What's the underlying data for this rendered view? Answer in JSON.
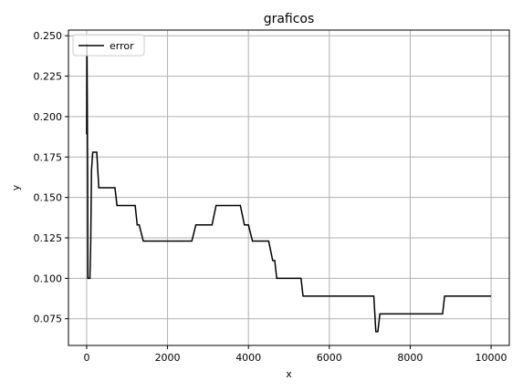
{
  "chart_data": {
    "type": "line",
    "title": "graficos",
    "xlabel": "x",
    "ylabel": "y",
    "xlim": [
      -450,
      10450
    ],
    "ylim": [
      0.0585,
      0.2535
    ],
    "xticks": [
      0,
      2000,
      4000,
      6000,
      8000,
      10000
    ],
    "xtick_labels": [
      "0",
      "2000",
      "4000",
      "6000",
      "8000",
      "10000"
    ],
    "yticks": [
      0.075,
      0.1,
      0.125,
      0.15,
      0.175,
      0.2,
      0.225,
      0.25
    ],
    "ytick_labels": [
      "0.075",
      "0.100",
      "0.125",
      "0.150",
      "0.175",
      "0.200",
      "0.225",
      "0.250"
    ],
    "grid": true,
    "legend_position": "top-left",
    "colors": {
      "line": "#000000",
      "grid": "#b0b0b0",
      "axes": "#000000",
      "background": "#ffffff"
    },
    "series": [
      {
        "name": "error",
        "x": [
          0,
          5,
          10,
          15,
          20,
          25,
          30,
          40,
          60,
          80,
          100,
          120,
          150,
          200,
          250,
          300,
          350,
          500,
          700,
          750,
          900,
          1100,
          1200,
          1250,
          1300,
          1400,
          1450,
          2000,
          2600,
          2700,
          3100,
          3200,
          3800,
          3900,
          4000,
          4100,
          4500,
          4600,
          4650,
          4700,
          4800,
          5300,
          5350,
          5400,
          7100,
          7150,
          7200,
          7250,
          7300,
          8800,
          8850,
          9000,
          10000
        ],
        "y": [
          0.189,
          0.245,
          0.236,
          0.215,
          0.185,
          0.16,
          0.1,
          0.1,
          0.1,
          0.1,
          0.121,
          0.167,
          0.178,
          0.178,
          0.178,
          0.156,
          0.156,
          0.156,
          0.156,
          0.145,
          0.145,
          0.145,
          0.145,
          0.133,
          0.133,
          0.123,
          0.123,
          0.123,
          0.123,
          0.133,
          0.133,
          0.145,
          0.145,
          0.133,
          0.133,
          0.123,
          0.123,
          0.111,
          0.111,
          0.1,
          0.1,
          0.1,
          0.089,
          0.089,
          0.089,
          0.067,
          0.067,
          0.078,
          0.078,
          0.078,
          0.089,
          0.089,
          0.089
        ]
      }
    ]
  }
}
